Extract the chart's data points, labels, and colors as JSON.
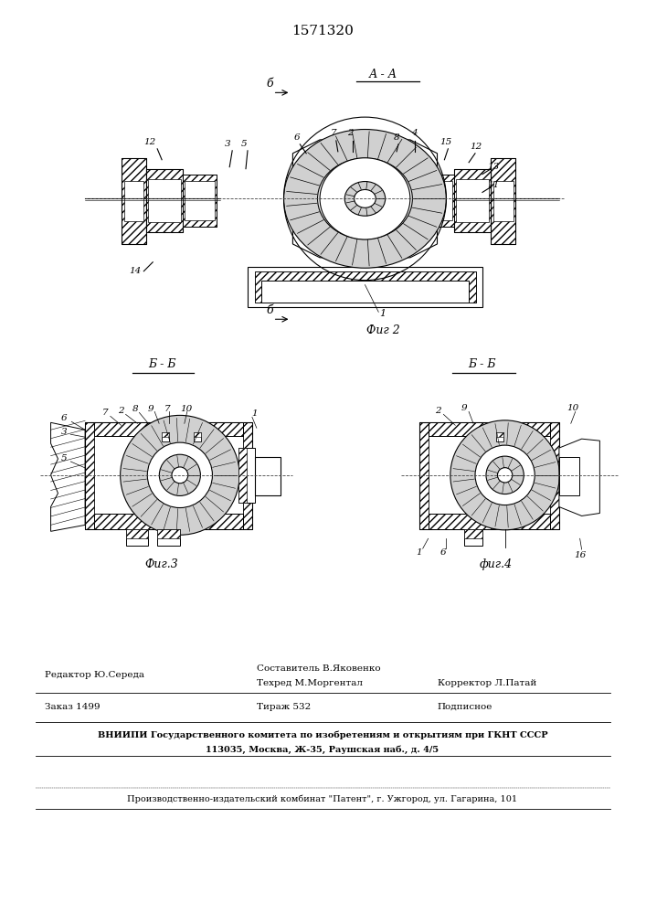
{
  "patent_number": "1571320",
  "bg_color": "#ffffff",
  "line_color": "#000000",
  "fig2_caption": "Фиг 2",
  "fig3_caption": "Фиг.3",
  "fig4_caption": "фиг.4",
  "footer": {
    "editor": "Редактор Ю.Середа",
    "composer": "Составитель В.Яковенко",
    "techred": "Техред М.Моргентал",
    "corrector": "Корректор Л.Патай",
    "order": "Заказ 1499",
    "circulation": "Тираж 532",
    "subscription": "Подписное",
    "org_line1": "ВНИИПИ Государственного комитета по изобретениям и открытиям при ГКНТ СССР",
    "org_line2": "113035, Москва, Ж-35, Раушская наб., д. 4/5",
    "publisher": "Производственно-издательский комбинат \"Патент\", г. Ужгород, ул. Гагарина, 101"
  }
}
